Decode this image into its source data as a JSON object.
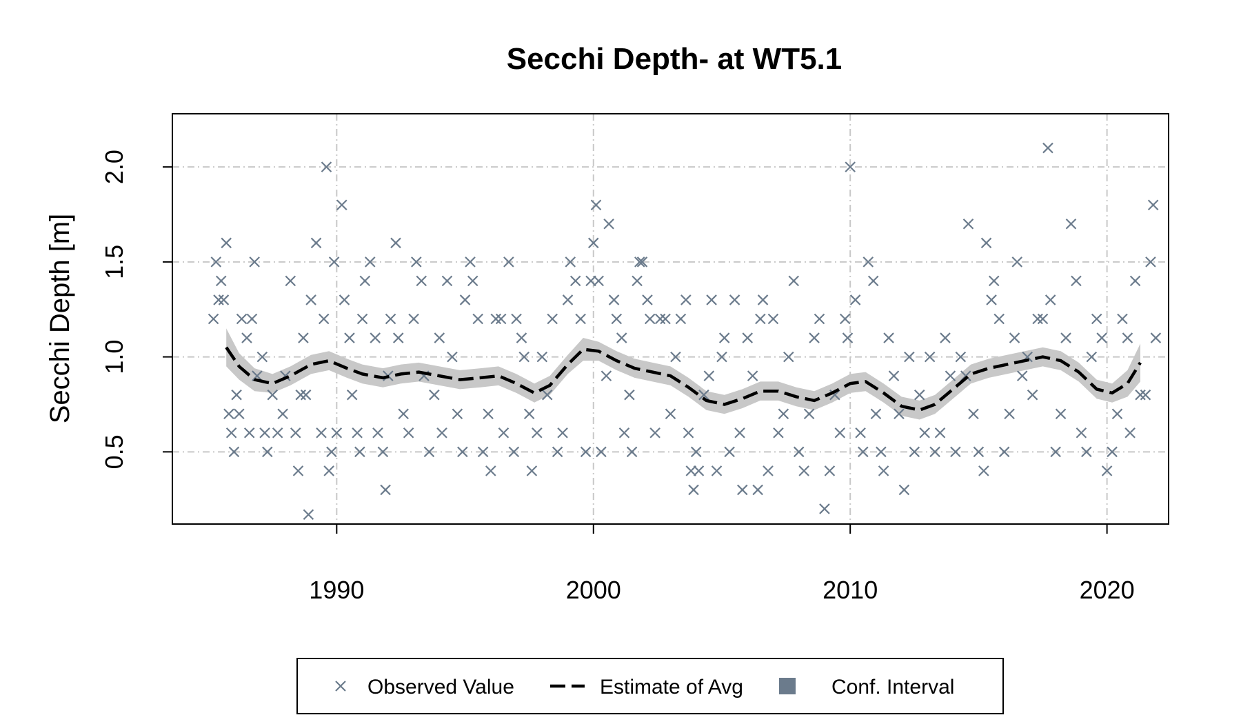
{
  "colors": {
    "points": "#6b7b8c",
    "line": "#000000",
    "band": "#c8c8c8",
    "legend_band": "#6b7b8c",
    "grid": "#c8c8c8"
  },
  "chart_data": {
    "type": "scatter",
    "title": "Secchi Depth- at WT5.1",
    "xlabel": "",
    "ylabel": "Secchi Depth [m]",
    "xlim": [
      1983.6,
      2022.4
    ],
    "ylim": [
      0.12,
      2.28
    ],
    "x_ticks": [
      "1990",
      "2000",
      "2010",
      "2020"
    ],
    "y_ticks": [
      "0.5",
      "1.0",
      "1.5",
      "2.0"
    ],
    "grid": true,
    "legend": {
      "placement": "bottom",
      "entries": [
        "Observed Value",
        "Estimate of Avg",
        "Conf. Interval"
      ]
    },
    "series": [
      {
        "name": "Observed Value",
        "kind": "points",
        "points": [
          [
            1985.2,
            1.2
          ],
          [
            1985.3,
            1.5
          ],
          [
            1985.4,
            1.3
          ],
          [
            1985.5,
            1.4
          ],
          [
            1985.6,
            1.3
          ],
          [
            1985.7,
            1.6
          ],
          [
            1985.8,
            0.7
          ],
          [
            1985.9,
            0.6
          ],
          [
            1986.0,
            0.5
          ],
          [
            1986.1,
            0.8
          ],
          [
            1986.2,
            0.7
          ],
          [
            1986.3,
            1.2
          ],
          [
            1986.5,
            1.1
          ],
          [
            1986.6,
            0.6
          ],
          [
            1986.7,
            1.2
          ],
          [
            1986.8,
            1.5
          ],
          [
            1986.9,
            0.9
          ],
          [
            1987.1,
            1.0
          ],
          [
            1987.2,
            0.6
          ],
          [
            1987.3,
            0.5
          ],
          [
            1987.5,
            0.8
          ],
          [
            1987.7,
            0.6
          ],
          [
            1987.9,
            0.7
          ],
          [
            1988.0,
            0.9
          ],
          [
            1988.2,
            1.4
          ],
          [
            1988.4,
            0.6
          ],
          [
            1988.5,
            0.4
          ],
          [
            1988.6,
            0.8
          ],
          [
            1988.7,
            1.1
          ],
          [
            1988.8,
            0.8
          ],
          [
            1988.9,
            0.17
          ],
          [
            1989.0,
            1.3
          ],
          [
            1989.2,
            1.6
          ],
          [
            1989.4,
            0.6
          ],
          [
            1989.5,
            1.2
          ],
          [
            1989.6,
            2.0
          ],
          [
            1989.7,
            0.4
          ],
          [
            1989.8,
            0.5
          ],
          [
            1989.9,
            1.5
          ],
          [
            1990.0,
            0.6
          ],
          [
            1990.2,
            1.8
          ],
          [
            1990.3,
            1.3
          ],
          [
            1990.5,
            1.1
          ],
          [
            1990.6,
            0.8
          ],
          [
            1990.8,
            0.6
          ],
          [
            1990.9,
            0.5
          ],
          [
            1991.0,
            1.2
          ],
          [
            1991.1,
            1.4
          ],
          [
            1991.3,
            1.5
          ],
          [
            1991.5,
            1.1
          ],
          [
            1991.6,
            0.6
          ],
          [
            1991.8,
            0.5
          ],
          [
            1991.9,
            0.3
          ],
          [
            1992.0,
            0.9
          ],
          [
            1992.1,
            1.2
          ],
          [
            1992.3,
            1.6
          ],
          [
            1992.4,
            1.1
          ],
          [
            1992.6,
            0.7
          ],
          [
            1992.8,
            0.6
          ],
          [
            1993.0,
            1.2
          ],
          [
            1993.1,
            1.5
          ],
          [
            1993.3,
            1.4
          ],
          [
            1993.4,
            0.9
          ],
          [
            1993.6,
            0.5
          ],
          [
            1993.8,
            0.8
          ],
          [
            1994.0,
            1.1
          ],
          [
            1994.1,
            0.6
          ],
          [
            1994.3,
            1.4
          ],
          [
            1994.5,
            1.0
          ],
          [
            1994.7,
            0.7
          ],
          [
            1994.9,
            0.5
          ],
          [
            1995.0,
            1.3
          ],
          [
            1995.2,
            1.5
          ],
          [
            1995.3,
            1.4
          ],
          [
            1995.5,
            1.2
          ],
          [
            1995.7,
            0.5
          ],
          [
            1995.9,
            0.7
          ],
          [
            1996.0,
            0.4
          ],
          [
            1996.2,
            1.2
          ],
          [
            1996.4,
            1.2
          ],
          [
            1996.5,
            0.6
          ],
          [
            1996.7,
            1.5
          ],
          [
            1996.9,
            0.5
          ],
          [
            1997.0,
            1.2
          ],
          [
            1997.2,
            1.1
          ],
          [
            1997.3,
            1.0
          ],
          [
            1997.5,
            0.7
          ],
          [
            1997.6,
            0.4
          ],
          [
            1997.8,
            0.6
          ],
          [
            1998.0,
            1.0
          ],
          [
            1998.2,
            0.8
          ],
          [
            1998.4,
            1.2
          ],
          [
            1998.6,
            0.5
          ],
          [
            1998.8,
            0.6
          ],
          [
            1999.0,
            1.3
          ],
          [
            1999.1,
            1.5
          ],
          [
            1999.3,
            1.4
          ],
          [
            1999.5,
            1.2
          ],
          [
            1999.7,
            0.5
          ],
          [
            1999.9,
            1.4
          ],
          [
            2000.0,
            1.6
          ],
          [
            2000.1,
            1.8
          ],
          [
            2000.2,
            1.4
          ],
          [
            2000.3,
            0.5
          ],
          [
            2000.5,
            0.9
          ],
          [
            2000.6,
            1.7
          ],
          [
            2000.8,
            1.3
          ],
          [
            2000.9,
            1.2
          ],
          [
            2001.1,
            1.1
          ],
          [
            2001.2,
            0.6
          ],
          [
            2001.4,
            0.8
          ],
          [
            2001.5,
            0.5
          ],
          [
            2001.7,
            1.4
          ],
          [
            2001.8,
            1.5
          ],
          [
            2001.9,
            1.5
          ],
          [
            2002.1,
            1.3
          ],
          [
            2002.2,
            1.2
          ],
          [
            2002.4,
            0.6
          ],
          [
            2002.6,
            1.2
          ],
          [
            2002.8,
            1.2
          ],
          [
            2003.0,
            0.7
          ],
          [
            2003.2,
            1.0
          ],
          [
            2003.4,
            1.2
          ],
          [
            2003.6,
            1.3
          ],
          [
            2003.7,
            0.6
          ],
          [
            2003.8,
            0.4
          ],
          [
            2003.9,
            0.3
          ],
          [
            2004.0,
            0.5
          ],
          [
            2004.1,
            0.4
          ],
          [
            2004.3,
            0.8
          ],
          [
            2004.5,
            0.9
          ],
          [
            2004.6,
            1.3
          ],
          [
            2004.8,
            0.4
          ],
          [
            2005.0,
            1.0
          ],
          [
            2005.1,
            1.1
          ],
          [
            2005.3,
            0.5
          ],
          [
            2005.5,
            1.3
          ],
          [
            2005.7,
            0.6
          ],
          [
            2005.8,
            0.3
          ],
          [
            2006.0,
            1.1
          ],
          [
            2006.2,
            0.9
          ],
          [
            2006.4,
            0.3
          ],
          [
            2006.5,
            1.2
          ],
          [
            2006.6,
            1.3
          ],
          [
            2006.8,
            0.4
          ],
          [
            2007.0,
            1.2
          ],
          [
            2007.2,
            0.6
          ],
          [
            2007.4,
            0.7
          ],
          [
            2007.6,
            1.0
          ],
          [
            2007.8,
            1.4
          ],
          [
            2008.0,
            0.5
          ],
          [
            2008.2,
            0.4
          ],
          [
            2008.4,
            0.7
          ],
          [
            2008.6,
            1.1
          ],
          [
            2008.8,
            1.2
          ],
          [
            2009.0,
            0.2
          ],
          [
            2009.2,
            0.4
          ],
          [
            2009.4,
            0.8
          ],
          [
            2009.6,
            0.6
          ],
          [
            2009.8,
            1.2
          ],
          [
            2009.9,
            1.1
          ],
          [
            2010.0,
            2.0
          ],
          [
            2010.2,
            1.3
          ],
          [
            2010.4,
            0.6
          ],
          [
            2010.5,
            0.5
          ],
          [
            2010.7,
            1.5
          ],
          [
            2010.9,
            1.4
          ],
          [
            2011.0,
            0.7
          ],
          [
            2011.2,
            0.5
          ],
          [
            2011.3,
            0.4
          ],
          [
            2011.5,
            1.1
          ],
          [
            2011.7,
            0.9
          ],
          [
            2011.9,
            0.7
          ],
          [
            2012.1,
            0.3
          ],
          [
            2012.3,
            1.0
          ],
          [
            2012.5,
            0.5
          ],
          [
            2012.7,
            0.8
          ],
          [
            2012.9,
            0.6
          ],
          [
            2013.1,
            1.0
          ],
          [
            2013.3,
            0.5
          ],
          [
            2013.5,
            0.6
          ],
          [
            2013.7,
            1.1
          ],
          [
            2013.9,
            0.9
          ],
          [
            2014.1,
            0.5
          ],
          [
            2014.3,
            1.0
          ],
          [
            2014.5,
            0.9
          ],
          [
            2014.6,
            1.7
          ],
          [
            2014.8,
            0.7
          ],
          [
            2015.0,
            0.5
          ],
          [
            2015.2,
            0.4
          ],
          [
            2015.3,
            1.6
          ],
          [
            2015.5,
            1.3
          ],
          [
            2015.6,
            1.4
          ],
          [
            2015.8,
            1.2
          ],
          [
            2016.0,
            0.5
          ],
          [
            2016.2,
            0.7
          ],
          [
            2016.4,
            1.1
          ],
          [
            2016.5,
            1.5
          ],
          [
            2016.7,
            0.9
          ],
          [
            2016.9,
            1.0
          ],
          [
            2017.1,
            0.8
          ],
          [
            2017.3,
            1.2
          ],
          [
            2017.5,
            1.2
          ],
          [
            2017.7,
            2.1
          ],
          [
            2017.8,
            1.3
          ],
          [
            2018.0,
            0.5
          ],
          [
            2018.2,
            0.7
          ],
          [
            2018.4,
            1.1
          ],
          [
            2018.6,
            1.7
          ],
          [
            2018.8,
            1.4
          ],
          [
            2019.0,
            0.6
          ],
          [
            2019.2,
            0.5
          ],
          [
            2019.4,
            1.0
          ],
          [
            2019.6,
            1.2
          ],
          [
            2019.8,
            1.1
          ],
          [
            2020.0,
            0.4
          ],
          [
            2020.2,
            0.5
          ],
          [
            2020.4,
            0.7
          ],
          [
            2020.6,
            1.2
          ],
          [
            2020.8,
            1.1
          ],
          [
            2020.9,
            0.6
          ],
          [
            2021.1,
            1.4
          ],
          [
            2021.3,
            0.8
          ],
          [
            2021.5,
            0.8
          ],
          [
            2021.7,
            1.5
          ],
          [
            2021.8,
            1.8
          ],
          [
            2021.9,
            1.1
          ]
        ]
      },
      {
        "name": "Estimate of Avg",
        "kind": "line",
        "points": [
          [
            1985.7,
            1.05
          ],
          [
            1986.2,
            0.95
          ],
          [
            1986.8,
            0.88
          ],
          [
            1987.5,
            0.86
          ],
          [
            1988.2,
            0.9
          ],
          [
            1989.0,
            0.96
          ],
          [
            1989.7,
            0.98
          ],
          [
            1990.4,
            0.94
          ],
          [
            1991.0,
            0.91
          ],
          [
            1991.8,
            0.89
          ],
          [
            1992.5,
            0.91
          ],
          [
            1993.2,
            0.92
          ],
          [
            1994.0,
            0.9
          ],
          [
            1994.8,
            0.88
          ],
          [
            1995.6,
            0.89
          ],
          [
            1996.3,
            0.9
          ],
          [
            1997.0,
            0.86
          ],
          [
            1997.7,
            0.81
          ],
          [
            1998.3,
            0.85
          ],
          [
            1999.0,
            0.96
          ],
          [
            1999.6,
            1.04
          ],
          [
            2000.2,
            1.03
          ],
          [
            2000.9,
            0.98
          ],
          [
            2001.6,
            0.94
          ],
          [
            2002.3,
            0.92
          ],
          [
            2003.0,
            0.9
          ],
          [
            2003.7,
            0.84
          ],
          [
            2004.4,
            0.77
          ],
          [
            2005.1,
            0.75
          ],
          [
            2005.8,
            0.78
          ],
          [
            2006.5,
            0.82
          ],
          [
            2007.2,
            0.82
          ],
          [
            2007.9,
            0.79
          ],
          [
            2008.6,
            0.77
          ],
          [
            2009.3,
            0.81
          ],
          [
            2010.0,
            0.86
          ],
          [
            2010.6,
            0.87
          ],
          [
            2011.3,
            0.81
          ],
          [
            2012.0,
            0.74
          ],
          [
            2012.7,
            0.72
          ],
          [
            2013.3,
            0.75
          ],
          [
            2014.0,
            0.83
          ],
          [
            2014.7,
            0.91
          ],
          [
            2015.4,
            0.94
          ],
          [
            2016.1,
            0.96
          ],
          [
            2016.8,
            0.98
          ],
          [
            2017.5,
            1.0
          ],
          [
            2018.2,
            0.98
          ],
          [
            2018.9,
            0.92
          ],
          [
            2019.6,
            0.83
          ],
          [
            2020.2,
            0.81
          ],
          [
            2020.8,
            0.86
          ],
          [
            2021.3,
            0.97
          ]
        ]
      },
      {
        "name": "Conf. Interval",
        "kind": "band",
        "halfwidth": [
          0.1,
          0.07,
          0.06,
          0.05,
          0.05,
          0.05,
          0.05,
          0.05,
          0.05,
          0.05,
          0.05,
          0.05,
          0.05,
          0.05,
          0.05,
          0.05,
          0.05,
          0.05,
          0.05,
          0.05,
          0.06,
          0.05,
          0.05,
          0.05,
          0.05,
          0.05,
          0.05,
          0.05,
          0.05,
          0.05,
          0.05,
          0.05,
          0.05,
          0.05,
          0.05,
          0.05,
          0.05,
          0.05,
          0.05,
          0.05,
          0.05,
          0.05,
          0.05,
          0.05,
          0.05,
          0.05,
          0.05,
          0.05,
          0.05,
          0.05,
          0.05,
          0.07,
          0.1
        ]
      }
    ]
  }
}
